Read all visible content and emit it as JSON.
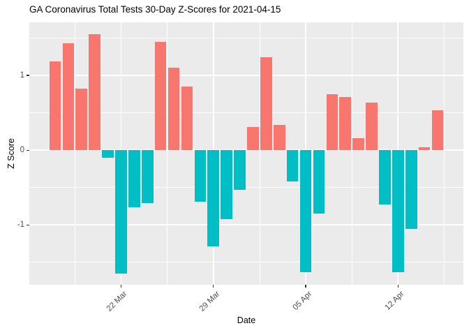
{
  "title": "GA Coronavirus Total Tests 30-Day Z-Scores for 2021-04-15",
  "chart_data": {
    "type": "bar",
    "title": "GA Coronavirus Total Tests 30-Day Z-Scores for 2021-04-15",
    "xlabel": "Date",
    "ylabel": "Z Score",
    "x": [
      "2021-03-17",
      "2021-03-18",
      "2021-03-19",
      "2021-03-20",
      "2021-03-21",
      "2021-03-22",
      "2021-03-23",
      "2021-03-24",
      "2021-03-25",
      "2021-03-26",
      "2021-03-27",
      "2021-03-28",
      "2021-03-29",
      "2021-03-30",
      "2021-03-31",
      "2021-04-01",
      "2021-04-02",
      "2021-04-03",
      "2021-04-04",
      "2021-04-05",
      "2021-04-06",
      "2021-04-07",
      "2021-04-08",
      "2021-04-09",
      "2021-04-10",
      "2021-04-11",
      "2021-04-12",
      "2021-04-13",
      "2021-04-14",
      "2021-04-15"
    ],
    "values": [
      1.19,
      1.43,
      0.82,
      1.55,
      -0.1,
      -1.65,
      -0.76,
      -0.71,
      1.45,
      1.1,
      0.85,
      -0.69,
      -1.29,
      -0.92,
      -0.53,
      0.31,
      1.24,
      0.34,
      -0.42,
      -1.63,
      -0.85,
      0.75,
      0.71,
      0.16,
      0.64,
      -0.73,
      -1.63,
      -1.05,
      0.04,
      0.53
    ],
    "x_tick_labels": [
      "22 Mar",
      "29 Mar",
      "05 Apr",
      "12 Apr"
    ],
    "x_tick_indices": [
      5,
      12,
      19,
      26
    ],
    "x_minor_grid_indices": [
      1.5,
      8.5,
      15.5,
      22.5,
      29.5
    ],
    "y_ticks": [
      1,
      0,
      -1
    ],
    "y_minor_grid": [
      1.5,
      0.5,
      -0.5,
      -1.5
    ],
    "ylim": [
      -1.8,
      1.71
    ],
    "grid": true,
    "legend_position": "none",
    "colors": {
      "positive_bar": "#F8766D",
      "negative_bar": "#00BFC4",
      "panel_background": "#EBEBEB",
      "gridline": "#FFFFFF",
      "axis_text": "#4D4D4D",
      "tick_mark": "#333333",
      "title_text": "#000000"
    }
  }
}
